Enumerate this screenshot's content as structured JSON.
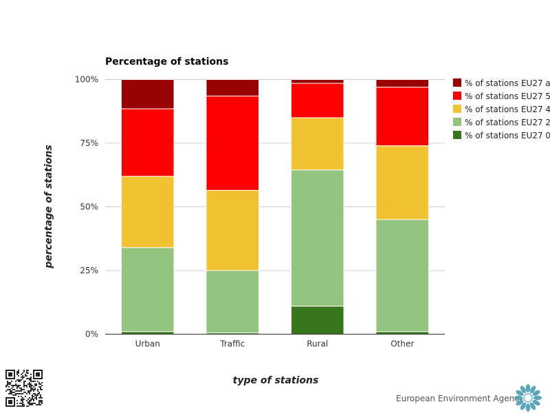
{
  "chart_data": {
    "type": "bar",
    "stacked": true,
    "title": "Percentage of stations",
    "xlabel": "type of stations",
    "ylabel": "percentage of stations",
    "categories": [
      "Urban",
      "Traffic",
      "Rural",
      "Other"
    ],
    "yticks": [
      "0%",
      "25%",
      "50%",
      "75%",
      "100%"
    ],
    "ylim": [
      0,
      100
    ],
    "grid": true,
    "legend_position": "right",
    "series": [
      {
        "name": "% of stations EU27 0",
        "color": "#38761d",
        "values": [
          1,
          0.5,
          11,
          1
        ]
      },
      {
        "name": "% of stations EU27 2",
        "color": "#93c47d",
        "values": [
          33,
          24.5,
          53.5,
          44
        ]
      },
      {
        "name": "% of stations EU27 4",
        "color": "#f1c232",
        "values": [
          28,
          31.5,
          20.5,
          29
        ]
      },
      {
        "name": "% of stations EU27 5",
        "color": "#ff0000",
        "values": [
          26.5,
          37,
          13.5,
          23
        ]
      },
      {
        "name": "% of stations EU27 a",
        "color": "#990000",
        "values": [
          11.5,
          6.5,
          1.5,
          3
        ]
      }
    ]
  },
  "footer": {
    "agency_name": "European Environment Agency"
  },
  "icons": {
    "qr": "qr-code-icon",
    "logo": "eea-logo-icon"
  }
}
